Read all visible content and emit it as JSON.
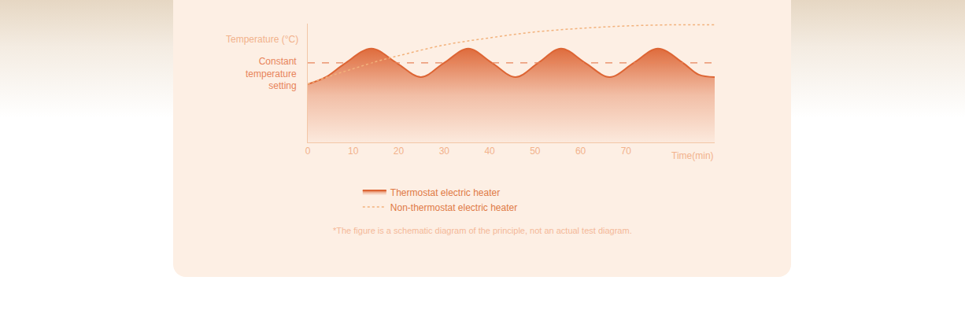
{
  "chart_data": {
    "type": "line",
    "y_label": "Temperature (°C)",
    "x_label": "Time(min)",
    "note": "*The figure is a schematic diagram of the principle, not an actual test diagram.",
    "xlim": [
      0,
      89.5
    ],
    "xticks": [
      0,
      10,
      20,
      30,
      40,
      50,
      60,
      70
    ],
    "ylim": [
      0,
      100
    ],
    "tick_labels": "x",
    "grid": false,
    "legend": "bottom",
    "reference_lines": [
      {
        "y": 67,
        "label": "Constant temperature setting",
        "color": "#e8845a",
        "line_style": "dashed"
      }
    ],
    "series": [
      {
        "name": "Thermostat electric heater",
        "type": "area",
        "color": "#dd6534",
        "line_style": "solid",
        "x": [
          0,
          4,
          8,
          14,
          19.5,
          24.9,
          30,
          35.3,
          40.5,
          45.7,
          50.7,
          55.7,
          61,
          66.4,
          71.7,
          77,
          82.5,
          86,
          89.5
        ],
        "values": [
          49,
          55,
          66,
          79,
          67,
          55,
          67,
          79,
          67,
          55,
          67,
          79,
          67,
          55,
          67,
          79,
          67,
          57,
          55
        ]
      },
      {
        "name": "Non-thermostat electric heater",
        "type": "line",
        "color": "#f2b27c",
        "line_style": "dotted",
        "x": [
          0,
          5,
          10,
          15,
          20,
          30,
          40,
          50,
          60,
          70,
          80,
          89.5
        ],
        "values": [
          49,
          56,
          62,
          68,
          73,
          82,
          88,
          93,
          96,
          98,
          99,
          99
        ]
      }
    ]
  }
}
